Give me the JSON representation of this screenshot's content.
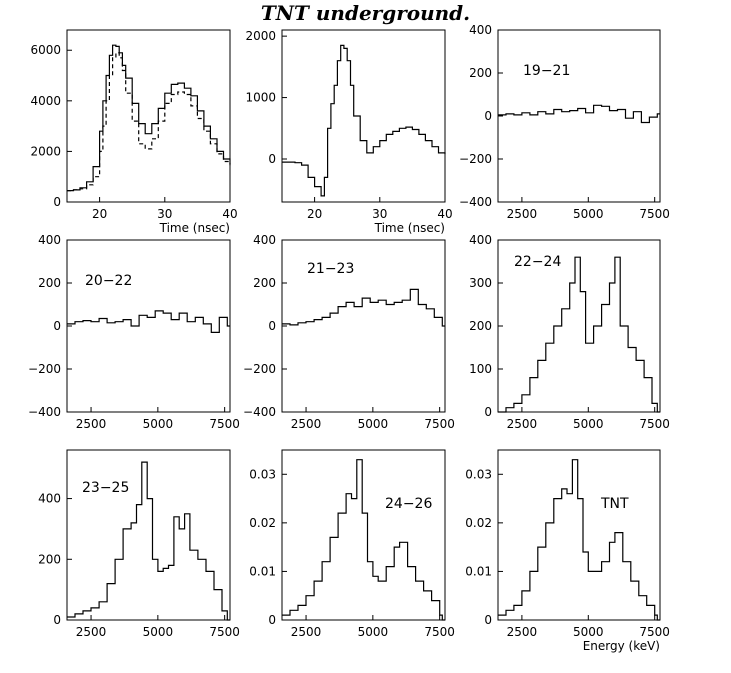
{
  "page": {
    "title": "TNT underground."
  },
  "chart_data": [
    {
      "type": "line",
      "title": "",
      "xlabel": "Time (nsec)",
      "ylabel": "",
      "xlim": [
        15,
        40
      ],
      "ylim": [
        0,
        6800
      ],
      "xticks": [
        20,
        30,
        40
      ],
      "yticks": [
        0,
        2000,
        4000,
        6000
      ],
      "x": [
        15,
        16,
        17,
        18,
        19,
        20,
        20.5,
        21,
        21.5,
        22,
        22.5,
        23,
        23.5,
        24,
        25,
        26,
        27,
        28,
        29,
        30,
        31,
        32,
        33,
        34,
        35,
        36,
        37,
        38,
        39,
        40
      ],
      "series": [
        {
          "values": [
            450,
            480,
            560,
            800,
            1400,
            2800,
            4000,
            5000,
            5800,
            6200,
            6150,
            5900,
            5400,
            4900,
            3900,
            3100,
            2700,
            3100,
            3700,
            4300,
            4650,
            4700,
            4500,
            4200,
            3600,
            3000,
            2500,
            2000,
            1700,
            1500
          ],
          "style": "solid"
        },
        {
          "values": [
            450,
            480,
            520,
            680,
            1000,
            2000,
            3000,
            4000,
            5000,
            5700,
            5900,
            5700,
            5200,
            4300,
            3200,
            2300,
            2100,
            2500,
            3200,
            3900,
            4250,
            4350,
            4250,
            3800,
            3300,
            2800,
            2300,
            1900,
            1600,
            1450
          ],
          "style": "dashed"
        }
      ]
    },
    {
      "type": "line",
      "title": "",
      "xlabel": "Time (nsec)",
      "ylabel": "",
      "xlim": [
        15,
        40
      ],
      "ylim": [
        -700,
        2100
      ],
      "xticks": [
        20,
        30,
        40
      ],
      "yticks": [
        0,
        1000,
        2000
      ],
      "x": [
        15,
        16,
        17,
        18,
        19,
        20,
        21,
        21.5,
        22,
        22.5,
        23,
        23.5,
        24,
        24.5,
        25,
        25.5,
        26,
        27,
        28,
        29,
        30,
        31,
        32,
        33,
        34,
        35,
        36,
        37,
        38,
        39,
        40
      ],
      "series": [
        {
          "values": [
            -50,
            -50,
            -60,
            -100,
            -300,
            -450,
            -600,
            -300,
            500,
            900,
            1200,
            1600,
            1850,
            1800,
            1600,
            1200,
            700,
            300,
            100,
            200,
            300,
            400,
            450,
            500,
            520,
            480,
            400,
            300,
            200,
            100,
            80
          ]
        }
      ]
    },
    {
      "type": "line",
      "label": "19−21",
      "xlabel": "",
      "ylabel": "",
      "xlim": [
        1600,
        7700
      ],
      "ylim": [
        -400,
        400
      ],
      "xticks": [
        2500,
        5000,
        7500
      ],
      "yticks": [
        -400,
        -200,
        0,
        200,
        400
      ],
      "x": [
        1600,
        1900,
        2200,
        2500,
        2800,
        3100,
        3400,
        3700,
        4000,
        4300,
        4600,
        4900,
        5200,
        5500,
        5800,
        6100,
        6400,
        6700,
        7000,
        7300,
        7600
      ],
      "series": [
        {
          "values": [
            5,
            10,
            5,
            15,
            5,
            20,
            10,
            30,
            20,
            25,
            35,
            15,
            50,
            45,
            25,
            30,
            -10,
            20,
            -30,
            -5,
            10
          ]
        }
      ]
    },
    {
      "type": "line",
      "label": "20−22",
      "xlabel": "",
      "ylabel": "",
      "xlim": [
        1600,
        7700
      ],
      "ylim": [
        -400,
        400
      ],
      "xticks": [
        2500,
        5000,
        7500
      ],
      "yticks": [
        -400,
        -200,
        0,
        200,
        400
      ],
      "x": [
        1600,
        1900,
        2200,
        2500,
        2800,
        3100,
        3400,
        3700,
        4000,
        4300,
        4600,
        4900,
        5200,
        5500,
        5800,
        6100,
        6400,
        6700,
        7000,
        7300,
        7600
      ],
      "series": [
        {
          "values": [
            10,
            20,
            25,
            20,
            35,
            15,
            20,
            30,
            0,
            50,
            40,
            70,
            60,
            30,
            60,
            20,
            40,
            10,
            -30,
            40,
            0
          ]
        }
      ]
    },
    {
      "type": "line",
      "label": "21−23",
      "xlabel": "",
      "ylabel": "",
      "xlim": [
        1600,
        7700
      ],
      "ylim": [
        -400,
        400
      ],
      "xticks": [
        2500,
        5000,
        7500
      ],
      "yticks": [
        -400,
        -200,
        0,
        200,
        400
      ],
      "x": [
        1600,
        1900,
        2200,
        2500,
        2800,
        3100,
        3400,
        3700,
        4000,
        4300,
        4600,
        4900,
        5200,
        5500,
        5800,
        6100,
        6400,
        6700,
        7000,
        7300,
        7600
      ],
      "series": [
        {
          "values": [
            10,
            5,
            15,
            20,
            30,
            40,
            60,
            90,
            110,
            90,
            130,
            110,
            120,
            100,
            110,
            120,
            170,
            100,
            80,
            40,
            0
          ]
        }
      ]
    },
    {
      "type": "line",
      "label": "22−24",
      "xlabel": "",
      "ylabel": "",
      "xlim": [
        1600,
        7700
      ],
      "ylim": [
        0,
        400
      ],
      "xticks": [
        2500,
        5000,
        7500
      ],
      "yticks": [
        0,
        100,
        200,
        300,
        400
      ],
      "x": [
        1600,
        1900,
        2200,
        2500,
        2800,
        3100,
        3400,
        3700,
        4000,
        4300,
        4500,
        4700,
        4900,
        5200,
        5500,
        5800,
        6000,
        6200,
        6500,
        6800,
        7100,
        7400,
        7600
      ],
      "series": [
        {
          "values": [
            0,
            10,
            20,
            40,
            80,
            120,
            160,
            200,
            240,
            300,
            360,
            280,
            160,
            200,
            250,
            300,
            360,
            200,
            150,
            120,
            80,
            20,
            0
          ]
        }
      ]
    },
    {
      "type": "line",
      "label": "23−25",
      "xlabel": "",
      "ylabel": "",
      "xlim": [
        1600,
        7700
      ],
      "ylim": [
        0,
        560
      ],
      "xticks": [
        2500,
        5000,
        7500
      ],
      "yticks": [
        0,
        200,
        400
      ],
      "x": [
        1600,
        1900,
        2200,
        2500,
        2800,
        3100,
        3400,
        3700,
        4000,
        4200,
        4400,
        4600,
        4800,
        5000,
        5200,
        5400,
        5600,
        5800,
        6000,
        6200,
        6500,
        6800,
        7100,
        7400,
        7600
      ],
      "series": [
        {
          "values": [
            10,
            20,
            30,
            40,
            60,
            120,
            200,
            300,
            320,
            380,
            520,
            400,
            200,
            160,
            170,
            180,
            340,
            300,
            350,
            230,
            200,
            160,
            100,
            30,
            0
          ]
        }
      ]
    },
    {
      "type": "line",
      "label": "24−26",
      "xlabel": "",
      "ylabel": "",
      "xlim": [
        1600,
        7700
      ],
      "ylim": [
        0,
        0.035
      ],
      "xticks": [
        2500,
        5000,
        7500
      ],
      "yticks": [
        0,
        0.01,
        0.02,
        0.03
      ],
      "x": [
        1600,
        1900,
        2200,
        2500,
        2800,
        3100,
        3400,
        3700,
        4000,
        4200,
        4400,
        4600,
        4800,
        5000,
        5200,
        5500,
        5800,
        6000,
        6300,
        6600,
        6900,
        7200,
        7500,
        7600
      ],
      "series": [
        {
          "values": [
            0.001,
            0.002,
            0.003,
            0.005,
            0.008,
            0.012,
            0.017,
            0.022,
            0.026,
            0.025,
            0.033,
            0.022,
            0.012,
            0.009,
            0.008,
            0.011,
            0.015,
            0.016,
            0.011,
            0.008,
            0.006,
            0.004,
            0.001,
            0.0
          ]
        }
      ]
    },
    {
      "type": "line",
      "label": "TNT",
      "xlabel": "Energy (keV)",
      "ylabel": "",
      "xlim": [
        1600,
        7700
      ],
      "ylim": [
        0,
        0.035
      ],
      "xticks": [
        2500,
        5000,
        7500
      ],
      "yticks": [
        0,
        0.01,
        0.02,
        0.03
      ],
      "x": [
        1600,
        1900,
        2200,
        2500,
        2800,
        3100,
        3400,
        3700,
        4000,
        4200,
        4400,
        4600,
        4800,
        5000,
        5200,
        5500,
        5800,
        6000,
        6300,
        6600,
        6900,
        7200,
        7500,
        7600
      ],
      "series": [
        {
          "values": [
            0.001,
            0.002,
            0.003,
            0.006,
            0.01,
            0.015,
            0.02,
            0.025,
            0.027,
            0.026,
            0.033,
            0.025,
            0.014,
            0.01,
            0.01,
            0.012,
            0.016,
            0.018,
            0.012,
            0.008,
            0.005,
            0.003,
            0.001,
            0.0
          ]
        }
      ]
    }
  ]
}
